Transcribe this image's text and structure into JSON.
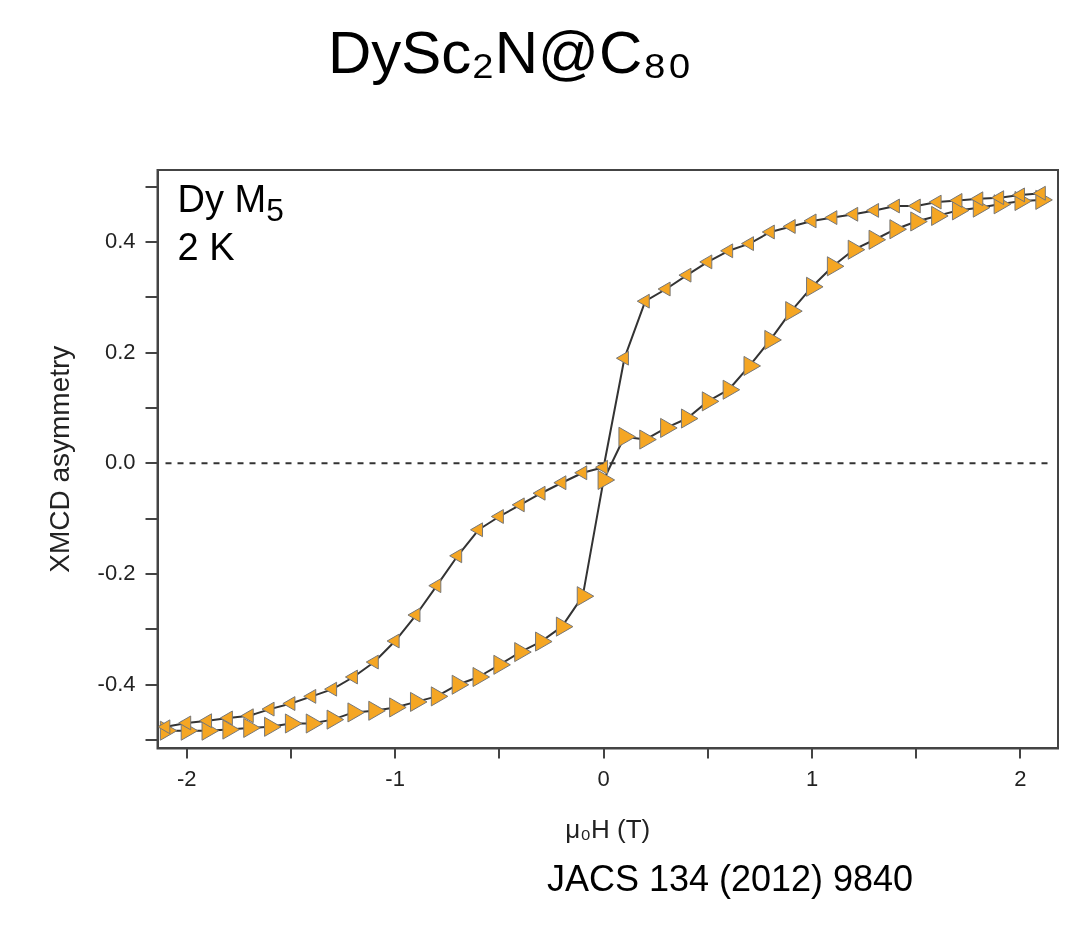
{
  "chart_data": {
    "type": "line",
    "title": "DySc₂N@C₈₀",
    "xlabel": "μ₀H (T)",
    "ylabel": "XMCD asymmetry",
    "annotations": [
      "Dy M$_{5}$",
      "2 K",
      "JACS 134 (2012) 9840"
    ],
    "xlim": [
      -2.14,
      2.18
    ],
    "ylim": [
      -0.515,
      0.53
    ],
    "xticks": [
      -2,
      {
        "value": -1.5,
        "label": null
      },
      -1,
      {
        "value": -0.5,
        "label": null
      },
      0,
      {
        "value": 0.5,
        "label": null
      },
      1,
      {
        "value": 1.5,
        "label": null
      },
      2
    ],
    "yticks": [
      {
        "value": -0.5,
        "label": null
      },
      -0.4,
      {
        "value": -0.3,
        "label": null
      },
      -0.2,
      {
        "value": -0.1,
        "label": null
      },
      {
        "value": 0,
        "label": "0.0"
      },
      {
        "value": 0.1,
        "label": null
      },
      0.2,
      {
        "value": 0.3,
        "label": null
      },
      0.4,
      {
        "value": 0.5,
        "label": null
      }
    ],
    "grid": false,
    "legend": false,
    "marker": "triangle",
    "line_style": "solid",
    "ref_lines": [
      {
        "axis": "y",
        "value": 0,
        "line_style": "dashed",
        "color": "#333333"
      }
    ],
    "series": [
      {
        "color": "#f5a623",
        "x": [
          2.1,
          2.0,
          1.9,
          1.8,
          1.7,
          1.6,
          1.5,
          1.4,
          1.3,
          1.2,
          1.1,
          1.0,
          0.9,
          0.8,
          0.7,
          0.6,
          0.5,
          0.4,
          0.3,
          0.2,
          0.1,
          0.0,
          -0.1,
          -0.2,
          -0.3,
          -0.4,
          -0.5,
          -0.6,
          -0.7,
          -0.8,
          -0.9,
          -1.0,
          -1.1,
          -1.2,
          -1.3,
          -1.4,
          -1.5,
          -1.6,
          -1.7,
          -1.8,
          -1.9,
          -2.0,
          -2.1
        ],
        "values": [
          0.488,
          0.485,
          0.48,
          0.478,
          0.475,
          0.472,
          0.465,
          0.465,
          0.457,
          0.45,
          0.444,
          0.438,
          0.428,
          0.418,
          0.397,
          0.384,
          0.364,
          0.34,
          0.315,
          0.293,
          0.19,
          -0.007,
          -0.017,
          -0.035,
          -0.054,
          -0.075,
          -0.096,
          -0.12,
          -0.167,
          -0.221,
          -0.274,
          -0.321,
          -0.359,
          -0.386,
          -0.408,
          -0.421,
          -0.434,
          -0.444,
          -0.456,
          -0.46,
          -0.465,
          -0.469,
          -0.476
        ]
      },
      {
        "color": "#f5a623",
        "x": [
          -2.1,
          -2.0,
          -1.9,
          -1.8,
          -1.7,
          -1.6,
          -1.5,
          -1.4,
          -1.3,
          -1.2,
          -1.1,
          -1.0,
          -0.9,
          -0.8,
          -0.7,
          -0.6,
          -0.5,
          -0.4,
          -0.3,
          -0.2,
          -0.1,
          0.0,
          0.1,
          0.2,
          0.3,
          0.4,
          0.5,
          0.6,
          0.7,
          0.8,
          0.9,
          1.0,
          1.1,
          1.2,
          1.3,
          1.4,
          1.5,
          1.6,
          1.7,
          1.8,
          1.9,
          2.0,
          2.1
        ],
        "values": [
          -0.483,
          -0.483,
          -0.483,
          -0.481,
          -0.478,
          -0.476,
          -0.47,
          -0.47,
          -0.463,
          -0.45,
          -0.447,
          -0.441,
          -0.431,
          -0.421,
          -0.4,
          -0.386,
          -0.364,
          -0.341,
          -0.322,
          -0.295,
          -0.24,
          -0.03,
          0.048,
          0.043,
          0.064,
          0.081,
          0.112,
          0.133,
          0.176,
          0.223,
          0.275,
          0.319,
          0.356,
          0.386,
          0.404,
          0.423,
          0.437,
          0.447,
          0.457,
          0.462,
          0.468,
          0.474,
          0.476
        ]
      }
    ]
  }
}
